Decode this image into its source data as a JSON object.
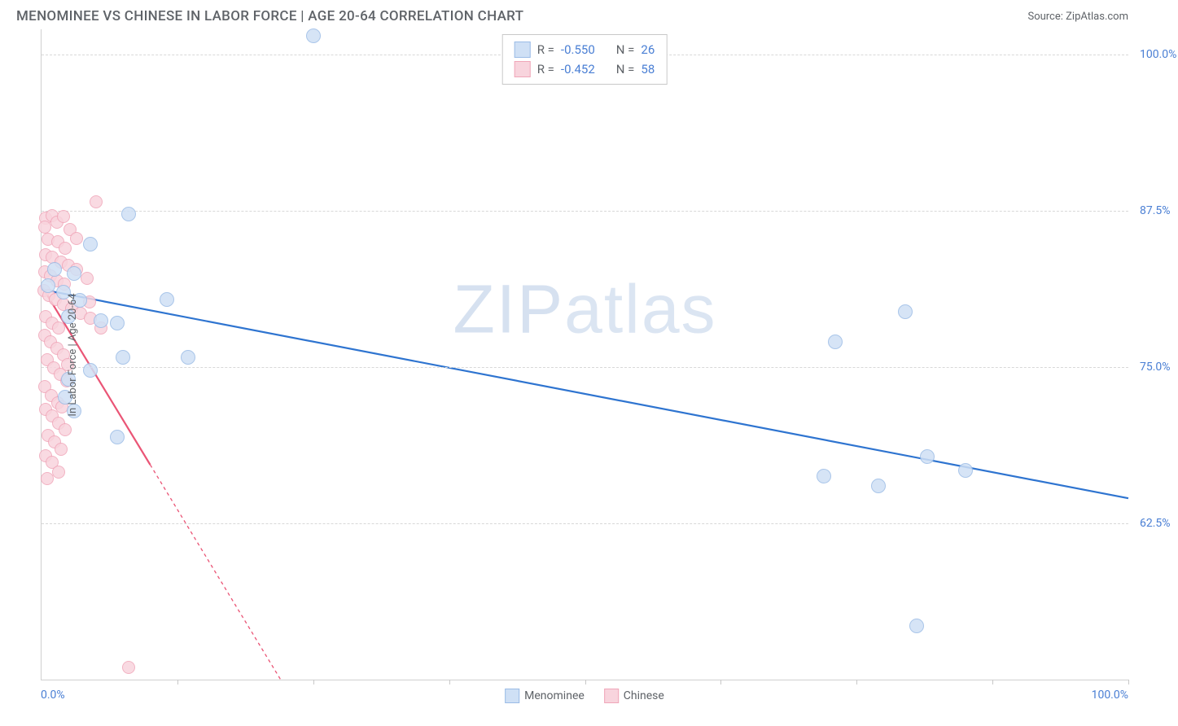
{
  "header": {
    "title": "MENOMINEE VS CHINESE IN LABOR FORCE | AGE 20-64 CORRELATION CHART",
    "source": "Source: ZipAtlas.com"
  },
  "chart": {
    "type": "scatter",
    "y_title": "In Labor Force | Age 20-64",
    "x_range": [
      0,
      100
    ],
    "y_range": [
      50,
      102
    ],
    "x_tick_labels": {
      "start": "0.0%",
      "end": "100.0%"
    },
    "y_ticks": [
      {
        "value": 62.5,
        "label": "62.5%"
      },
      {
        "value": 75.0,
        "label": "75.0%"
      },
      {
        "value": 87.5,
        "label": "87.5%"
      },
      {
        "value": 100.0,
        "label": "100.0%"
      }
    ],
    "x_tick_positions": [
      0,
      12.5,
      25,
      37.5,
      50,
      62.5,
      75,
      87.5,
      100
    ],
    "background_color": "#ffffff",
    "grid_color": "#d8d8d8",
    "watermark": {
      "strong": "ZIP",
      "light": "atlas"
    },
    "series": [
      {
        "name": "Menominee",
        "color_fill": "#cfe0f5",
        "color_stroke": "#9bbce6",
        "marker_radius": 9,
        "marker_opacity": 0.85,
        "trend": {
          "x1": 0,
          "y1": 81.2,
          "x2": 100,
          "y2": 64.5,
          "color": "#2e74d0",
          "width": 2.2,
          "dash": "none"
        },
        "stats": {
          "R": "-0.550",
          "N": "26"
        },
        "points": [
          [
            25,
            101.5
          ],
          [
            8,
            87.2
          ],
          [
            4.5,
            84.8
          ],
          [
            3.0,
            82.5
          ],
          [
            1.2,
            82.8
          ],
          [
            2.0,
            81.0
          ],
          [
            0.6,
            81.5
          ],
          [
            2.5,
            79.0
          ],
          [
            3.5,
            80.3
          ],
          [
            11.5,
            80.4
          ],
          [
            13.5,
            75.8
          ],
          [
            5.5,
            78.7
          ],
          [
            7.0,
            78.5
          ],
          [
            7.5,
            75.8
          ],
          [
            4.5,
            74.7
          ],
          [
            2.5,
            74.0
          ],
          [
            2.2,
            72.6
          ],
          [
            3.0,
            71.5
          ],
          [
            7.0,
            69.4
          ],
          [
            79.5,
            79.4
          ],
          [
            73.0,
            77.0
          ],
          [
            81.5,
            67.8
          ],
          [
            85.0,
            66.7
          ],
          [
            72.0,
            66.3
          ],
          [
            77.0,
            65.5
          ],
          [
            80.5,
            54.3
          ]
        ]
      },
      {
        "name": "Chinese",
        "color_fill": "#f8d4dd",
        "color_stroke": "#f0a6b9",
        "marker_radius": 8,
        "marker_opacity": 0.85,
        "trend": {
          "x1": 0,
          "y1": 81.5,
          "x2": 22,
          "y2": 50,
          "color": "#ea5576",
          "width": 2.2,
          "dash_solid_to_x": 10
        },
        "stats": {
          "R": "-0.452",
          "N": "58"
        },
        "points": [
          [
            0.4,
            86.9
          ],
          [
            0.3,
            86.2
          ],
          [
            1.0,
            87.1
          ],
          [
            1.4,
            86.6
          ],
          [
            2.0,
            87.0
          ],
          [
            2.6,
            86.0
          ],
          [
            3.2,
            85.3
          ],
          [
            0.6,
            85.2
          ],
          [
            1.5,
            85.0
          ],
          [
            2.2,
            84.5
          ],
          [
            0.4,
            84.0
          ],
          [
            1.0,
            83.8
          ],
          [
            1.8,
            83.4
          ],
          [
            2.5,
            83.1
          ],
          [
            3.2,
            82.8
          ],
          [
            4.2,
            82.1
          ],
          [
            0.3,
            82.6
          ],
          [
            0.8,
            82.3
          ],
          [
            1.4,
            81.9
          ],
          [
            2.1,
            81.6
          ],
          [
            0.2,
            81.1
          ],
          [
            0.7,
            80.7
          ],
          [
            1.3,
            80.4
          ],
          [
            2.0,
            80.0
          ],
          [
            2.8,
            79.7
          ],
          [
            3.6,
            79.3
          ],
          [
            4.5,
            78.9
          ],
          [
            5.5,
            78.1
          ],
          [
            0.4,
            79.0
          ],
          [
            1.0,
            78.5
          ],
          [
            1.6,
            78.1
          ],
          [
            0.3,
            77.5
          ],
          [
            0.8,
            77.0
          ],
          [
            1.4,
            76.5
          ],
          [
            2.0,
            76.0
          ],
          [
            0.5,
            75.6
          ],
          [
            1.1,
            74.9
          ],
          [
            1.7,
            74.4
          ],
          [
            2.3,
            73.9
          ],
          [
            0.3,
            73.4
          ],
          [
            0.9,
            72.7
          ],
          [
            1.5,
            72.1
          ],
          [
            0.4,
            71.6
          ],
          [
            1.0,
            71.1
          ],
          [
            1.6,
            70.5
          ],
          [
            2.2,
            70.0
          ],
          [
            0.6,
            69.5
          ],
          [
            1.2,
            69.0
          ],
          [
            1.8,
            68.4
          ],
          [
            0.4,
            67.9
          ],
          [
            1.0,
            67.4
          ],
          [
            1.6,
            66.6
          ],
          [
            1.9,
            71.8
          ],
          [
            5.0,
            88.2
          ],
          [
            2.4,
            75.2
          ],
          [
            0.5,
            66.1
          ],
          [
            4.4,
            80.2
          ],
          [
            8.0,
            51.0
          ]
        ]
      }
    ],
    "legend_bottom": [
      {
        "label": "Menominee",
        "fill": "#cfe0f5",
        "stroke": "#9bbce6"
      },
      {
        "label": "Chinese",
        "fill": "#f8d4dd",
        "stroke": "#f0a6b9"
      }
    ]
  }
}
